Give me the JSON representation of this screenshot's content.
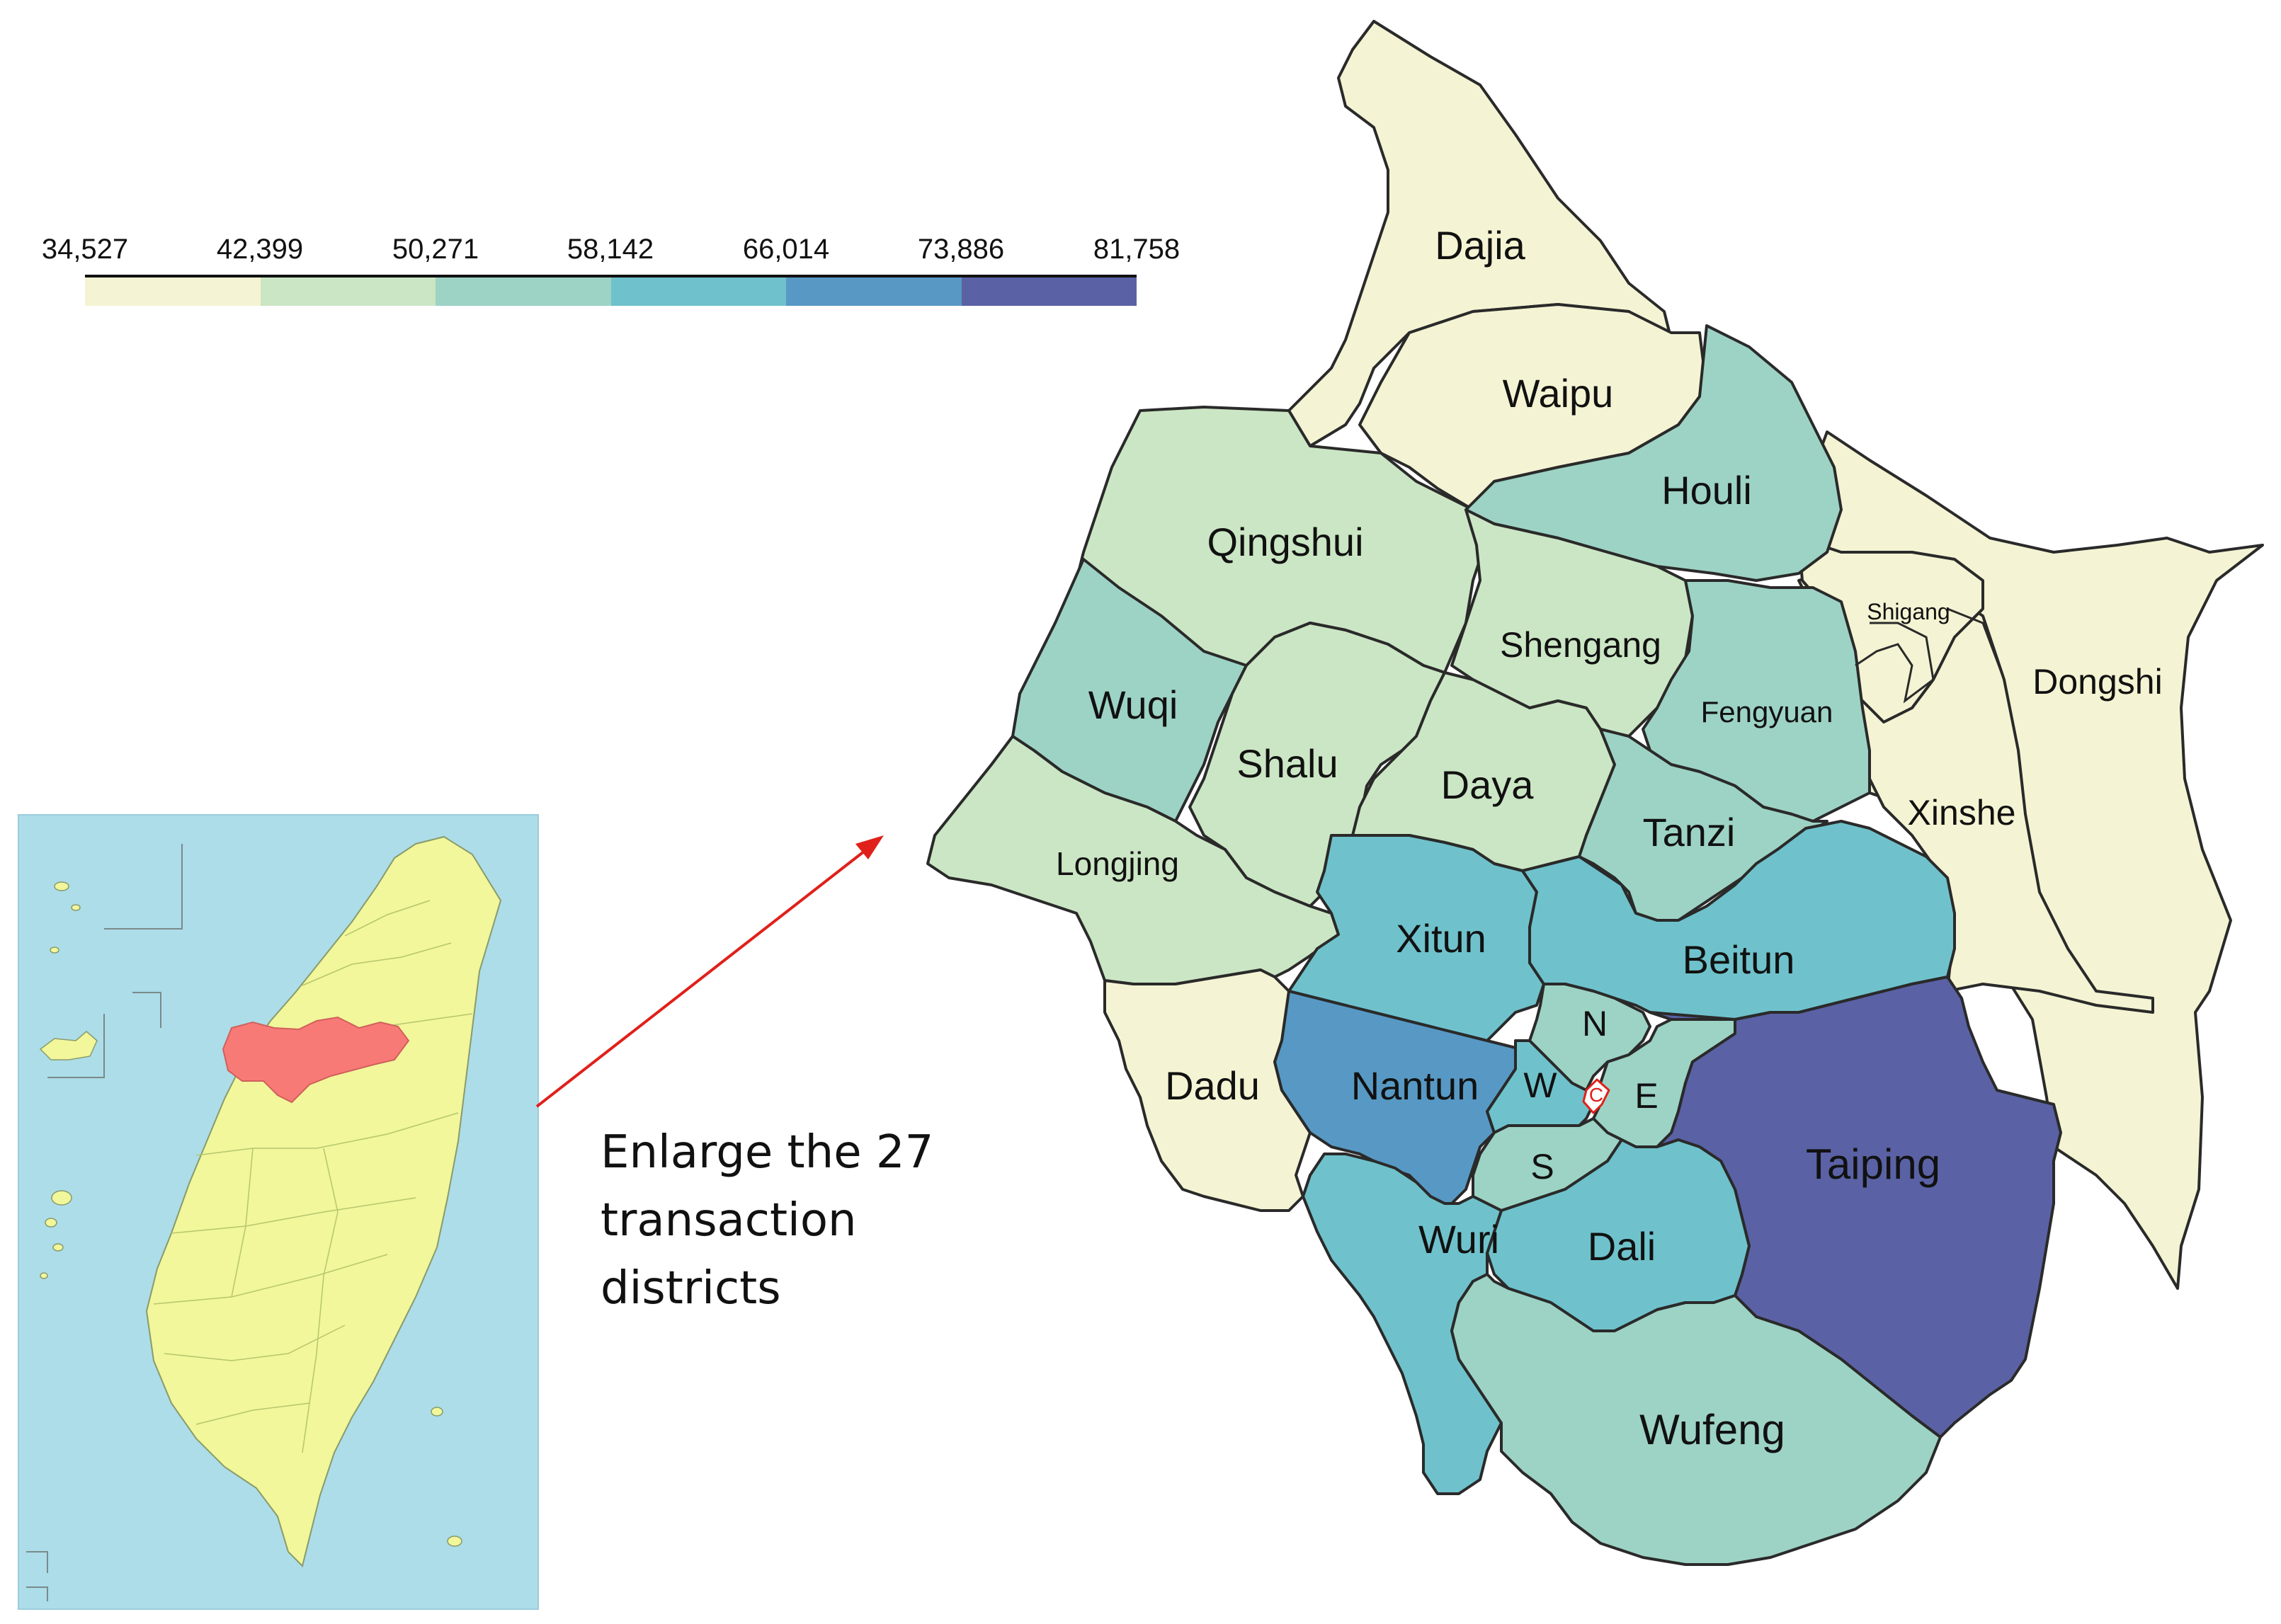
{
  "legend": {
    "ticks": [
      "34,527",
      "42,399",
      "50,271",
      "58,142",
      "66,014",
      "73,886",
      "81,758"
    ],
    "colors": [
      "#f4f4d4",
      "#cbe6c4",
      "#9dd3c4",
      "#6fc2cb",
      "#5799c4",
      "#5a62a5"
    ]
  },
  "caption": {
    "line1": "Enlarge the 27",
    "line2": "transaction",
    "line3": "districts"
  },
  "inset": {
    "sea_color": "#acdde9",
    "land_color": "#f1f79a",
    "highlight_color": "#f87a77"
  },
  "arrow_color": "#e0201a",
  "center_marker_color": "#e0201a",
  "districts": {
    "dajia": "Dajia",
    "waipu": "Waipu",
    "houli": "Houli",
    "qingshui": "Qingshui",
    "shengang": "Shengang",
    "shigang": "Shigang",
    "dongshi": "Dongshi",
    "wuqi": "Wuqi",
    "shalu": "Shalu",
    "daya": "Daya",
    "fengyuan": "Fengyuan",
    "longjing": "Longjing",
    "tanzi": "Tanzi",
    "xinshe": "Xinshe",
    "xitun": "Xitun",
    "beitun": "Beitun",
    "dadu": "Dadu",
    "nantun": "Nantun",
    "north": "N",
    "west": "W",
    "central": "C",
    "east": "E",
    "south": "S",
    "taiping": "Taiping",
    "wuri": "Wuri",
    "dali": "Dali",
    "wufeng": "Wufeng"
  },
  "district_classes": {
    "dajia": 0,
    "waipu": 0,
    "houli": 2,
    "qingshui": 1,
    "shengang": 1,
    "shigang": 0,
    "dongshi": 0,
    "wuqi": 2,
    "shalu": 1,
    "daya": 1,
    "fengyuan": 2,
    "longjing": 1,
    "tanzi": 2,
    "xinshe": 0,
    "xitun": 3,
    "beitun": 3,
    "dadu": 0,
    "nantun": 4,
    "north": 2,
    "west": 3,
    "central": 0,
    "east": 2,
    "south": 2,
    "taiping": 5,
    "wuri": 3,
    "dali": 3,
    "wufeng": 2
  }
}
